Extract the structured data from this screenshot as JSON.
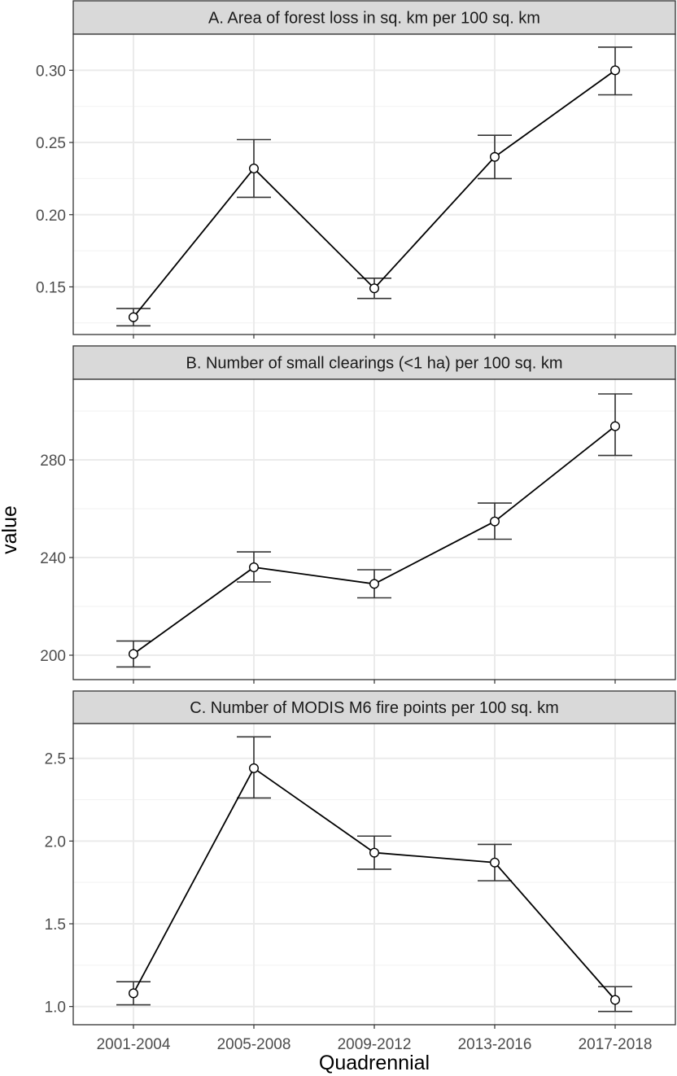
{
  "chart_data": {
    "type": "line",
    "layout": "faceted",
    "xlabel": "Quadrennial",
    "ylabel": "value",
    "categories": [
      "2001-2004",
      "2005-2008",
      "2009-2012",
      "2013-2016",
      "2017-2018"
    ],
    "facets": [
      {
        "title": "A. Area of forest loss in sq. km per 100 sq. km",
        "values": [
          0.129,
          0.232,
          0.149,
          0.24,
          0.3
        ],
        "error_low": [
          0.123,
          0.212,
          0.142,
          0.225,
          0.283
        ],
        "error_high": [
          0.135,
          0.252,
          0.156,
          0.255,
          0.316
        ],
        "ylim": [
          0.117,
          0.325
        ],
        "yticks": [
          0.15,
          0.2,
          0.25,
          0.3
        ],
        "ytick_labels": [
          "0.15",
          "0.20",
          "0.25",
          "0.30"
        ]
      },
      {
        "title": "B. Number of small clearings (<1 ha) per 100 sq. km",
        "values": [
          200.5,
          236.0,
          229.2,
          254.8,
          293.8
        ],
        "error_low": [
          195.2,
          230.0,
          223.5,
          247.5,
          281.8
        ],
        "error_high": [
          205.8,
          242.3,
          235.0,
          262.3,
          307.0
        ],
        "ylim": [
          190,
          313
        ],
        "yticks": [
          200,
          240,
          280
        ],
        "ytick_labels": [
          "200",
          "240",
          "280"
        ]
      },
      {
        "title": "C. Number of MODIS M6 fire points per 100 sq. km",
        "values": [
          1.08,
          2.44,
          1.93,
          1.87,
          1.04
        ],
        "error_low": [
          1.01,
          2.26,
          1.83,
          1.76,
          0.97
        ],
        "error_high": [
          1.15,
          2.63,
          2.03,
          1.98,
          1.12
        ],
        "ylim": [
          0.89,
          2.71
        ],
        "yticks": [
          1.0,
          1.5,
          2.0,
          2.5
        ],
        "ytick_labels": [
          "1.0",
          "1.5",
          "2.0",
          "2.5"
        ]
      }
    ],
    "colors": {
      "line": "#000000",
      "errorbar": "#333333",
      "point_fill": "#ffffff",
      "grid": "#ebebeb",
      "strip_fill": "#d9d9d9",
      "panel_border": "#333333"
    },
    "grid": true
  }
}
